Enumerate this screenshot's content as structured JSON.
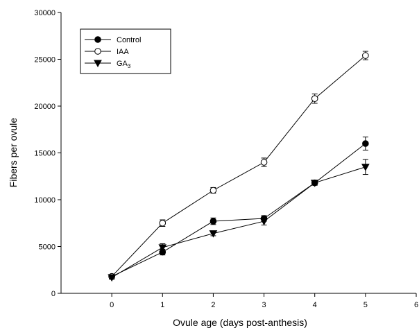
{
  "chart_data": {
    "type": "line",
    "xlabel": "Ovule age (days post-anthesis)",
    "ylabel": "Fibers per ovule",
    "xlim": [
      -1,
      6
    ],
    "ylim": [
      0,
      30000
    ],
    "xticks": [
      0,
      1,
      2,
      3,
      4,
      5,
      6
    ],
    "yticks": [
      0,
      5000,
      10000,
      15000,
      20000,
      25000,
      30000
    ],
    "x": [
      0,
      1,
      2,
      3,
      4,
      5
    ],
    "grid": false,
    "legend_position": "top-left",
    "series": [
      {
        "name": "Control",
        "marker": "filled-circle",
        "values": [
          1800,
          4400,
          7700,
          8000,
          11800,
          16000
        ],
        "errors": [
          200,
          300,
          350,
          300,
          250,
          700
        ]
      },
      {
        "name": "IAA",
        "marker": "open-circle",
        "values": [
          1800,
          7500,
          11000,
          14000,
          20800,
          25400
        ],
        "errors": [
          200,
          350,
          300,
          450,
          500,
          450
        ]
      },
      {
        "name": "GA",
        "name_subscript": "3",
        "marker": "filled-triangle-down",
        "values": [
          1700,
          4900,
          6400,
          7700,
          11800,
          13500
        ],
        "errors": [
          200,
          400,
          250,
          400,
          250,
          800
        ]
      }
    ]
  }
}
